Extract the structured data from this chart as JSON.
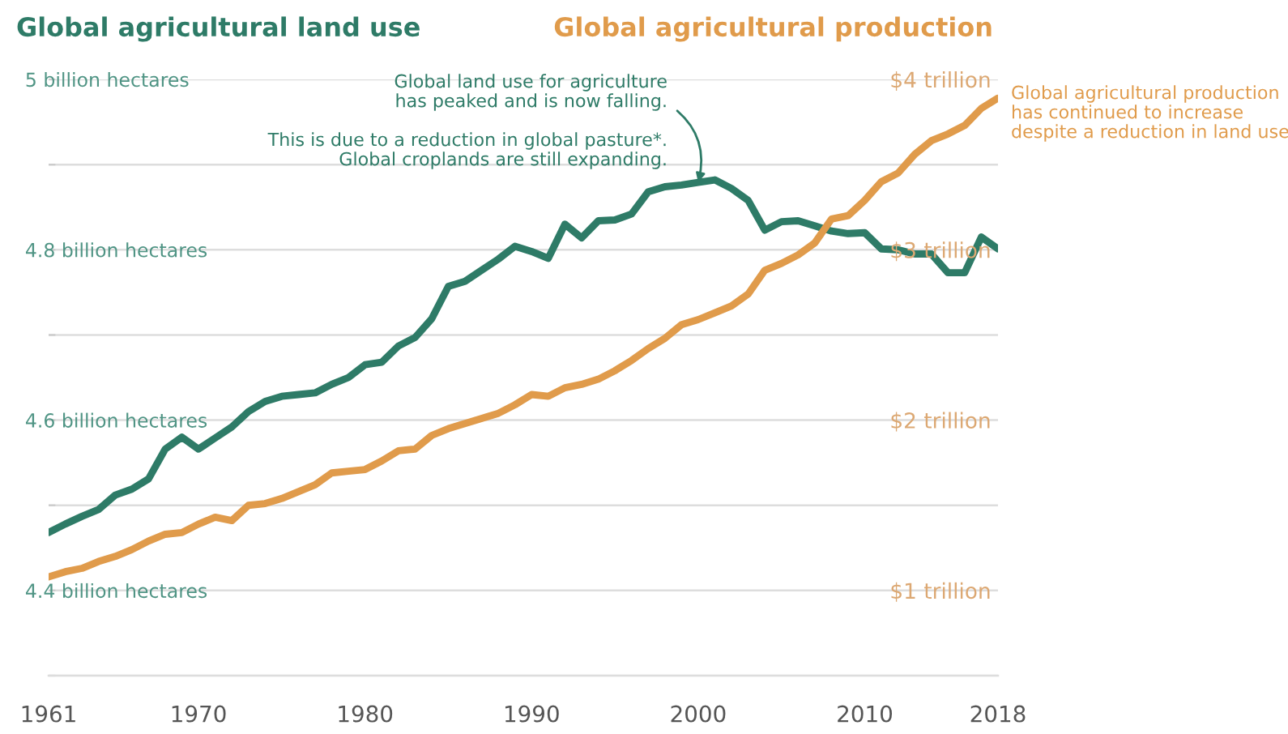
{
  "chart_data": {
    "type": "line",
    "ylabel": "Global agricultural land use",
    "y2label": "Global agricultural production",
    "x": [
      1961,
      1962,
      1963,
      1964,
      1965,
      1966,
      1967,
      1968,
      1969,
      1970,
      1971,
      1972,
      1973,
      1974,
      1975,
      1976,
      1977,
      1978,
      1979,
      1980,
      1981,
      1982,
      1983,
      1984,
      1985,
      1986,
      1987,
      1988,
      1989,
      1990,
      1991,
      1992,
      1993,
      1994,
      1995,
      1996,
      1997,
      1998,
      1999,
      2000,
      2001,
      2002,
      2003,
      2004,
      2005,
      2006,
      2007,
      2008,
      2009,
      2010,
      2011,
      2012,
      2013,
      2014,
      2015,
      2016,
      2017,
      2018
    ],
    "series": [
      {
        "color": "#2e7b67",
        "values": [
          4.468,
          4.478,
          4.487,
          4.495,
          4.512,
          4.519,
          4.531,
          4.566,
          4.58,
          4.566,
          4.579,
          4.592,
          4.61,
          4.622,
          4.628,
          4.63,
          4.632,
          4.642,
          4.65,
          4.665,
          4.668,
          4.687,
          4.697,
          4.719,
          4.757,
          4.763,
          4.776,
          4.789,
          4.804,
          4.798,
          4.79,
          4.83,
          4.814,
          4.834,
          4.835,
          4.842,
          4.868,
          4.874,
          4.876,
          4.879,
          4.882,
          4.872,
          4.858,
          4.823,
          4.833,
          4.834,
          4.828,
          4.822,
          4.819,
          4.82,
          4.801,
          4.8,
          4.795,
          4.795,
          4.773,
          4.773,
          4.815,
          4.801
        ]
      },
      {
        "color": "#e09b4b",
        "axis": "y2",
        "values": [
          1.08,
          1.11,
          1.13,
          1.17,
          1.2,
          1.24,
          1.29,
          1.33,
          1.34,
          1.39,
          1.43,
          1.41,
          1.5,
          1.51,
          1.54,
          1.58,
          1.62,
          1.69,
          1.7,
          1.71,
          1.76,
          1.82,
          1.83,
          1.91,
          1.95,
          1.98,
          2.01,
          2.04,
          2.09,
          2.15,
          2.14,
          2.19,
          2.21,
          2.24,
          2.29,
          2.35,
          2.42,
          2.48,
          2.56,
          2.59,
          2.63,
          2.67,
          2.74,
          2.88,
          2.92,
          2.97,
          3.04,
          3.18,
          3.2,
          3.29,
          3.4,
          3.45,
          3.56,
          3.64,
          3.68,
          3.73,
          3.83,
          3.89
        ]
      }
    ],
    "xlim": [
      1961,
      2018
    ],
    "xticks": [
      1961,
      1970,
      1980,
      1990,
      2000,
      2010,
      2018
    ],
    "ylim": [
      4.3,
      5.0
    ],
    "yticks": [
      {
        "value": 4.3,
        "label": null
      },
      {
        "value": 4.4,
        "label": "4.4 billion hectares"
      },
      {
        "value": 4.5,
        "label": null
      },
      {
        "value": 4.6,
        "label": "4.6 billion hectares"
      },
      {
        "value": 4.7,
        "label": null
      },
      {
        "value": 4.8,
        "label": "4.8 billion hectares"
      },
      {
        "value": 4.9,
        "label": null
      },
      {
        "value": 5.0,
        "label": "5 billion hectares"
      }
    ],
    "y2lim": [
      0.5,
      4.0
    ],
    "y2ticks": [
      {
        "value": 1,
        "label": "$1 trillion"
      },
      {
        "value": 2,
        "label": "$2 trillion"
      },
      {
        "value": 3,
        "label": "$3 trillion"
      },
      {
        "value": 4,
        "label": "$4 trillion"
      }
    ],
    "grid": "y",
    "annotations": [
      {
        "text": "Global land use for agriculture\nhas peaked and is now falling.",
        "x": 2000,
        "y": 4.879
      },
      "This is due to a reduction in global pasture*.\nGlobal croplands are still expanding.",
      "Global agricultural production\nhas continued to increase\ndespite a reduction in land use"
    ]
  }
}
